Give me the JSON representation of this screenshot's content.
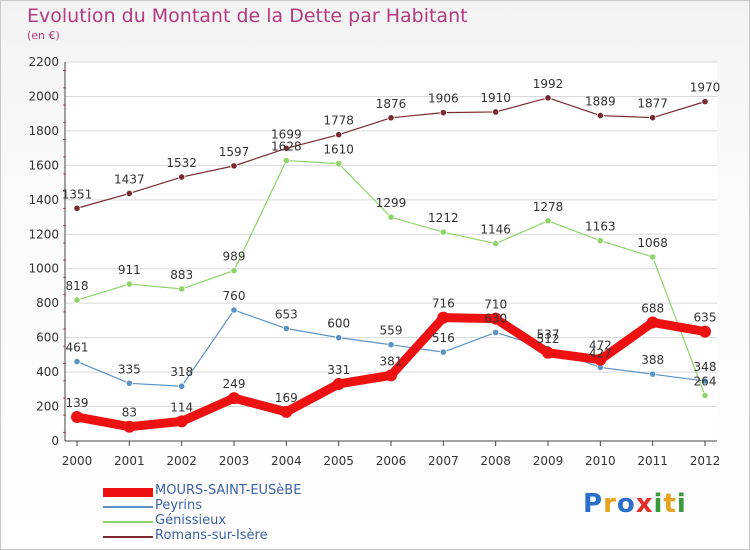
{
  "title": "Evolution du Montant de la Dette par Habitant",
  "subtitle": "(en €)",
  "logo": {
    "text": "Proxiti",
    "colors": [
      "#2a6fc9",
      "#e8a21c",
      "#2a6fc9",
      "#e0302a",
      "#3a9a3a",
      "#e8a21c",
      "#3a9a3a"
    ]
  },
  "chart_data": {
    "type": "line",
    "x": [
      "2000",
      "2001",
      "2002",
      "2003",
      "2004",
      "2005",
      "2006",
      "2007",
      "2008",
      "2009",
      "2010",
      "2011",
      "2012"
    ],
    "ylim": [
      0,
      2200
    ],
    "yticks": [
      "0",
      "200",
      "400",
      "600",
      "800",
      "1000",
      "1200",
      "1400",
      "1600",
      "1800",
      "2000",
      "2200"
    ],
    "grid": "horizontal",
    "legend_position": "bottom-left",
    "series": [
      {
        "name": "Romans-sur-Isère",
        "color": "#7a2a2e",
        "width": 1.2,
        "values": [
          1351,
          1437,
          1532,
          1597,
          1699,
          1778,
          1876,
          1906,
          1910,
          1992,
          1889,
          1877,
          1970
        ],
        "labels": [
          "1351",
          "1437",
          "1532",
          "1597",
          "1699",
          "1778",
          "1876",
          "1906",
          "1910",
          "1992",
          "1889",
          "1877",
          "1970"
        ]
      },
      {
        "name": "Génissieux",
        "color": "#8fd46a",
        "width": 1.2,
        "values": [
          818,
          911,
          883,
          989,
          1628,
          1610,
          1299,
          1212,
          1146,
          1278,
          1163,
          1068,
          264
        ],
        "labels": [
          "818",
          "911",
          "883",
          "989",
          "1628",
          "1610",
          "1299",
          "1212",
          "1146",
          "1278",
          "1163",
          "1068",
          "264"
        ]
      },
      {
        "name": "Peyrins",
        "color": "#5b93c7",
        "width": 1.2,
        "values": [
          461,
          335,
          318,
          760,
          653,
          600,
          559,
          516,
          630,
          537,
          427,
          388,
          348
        ],
        "labels": [
          "461",
          "335",
          "318",
          "760",
          "653",
          "600",
          "559",
          "516",
          "630",
          "537",
          "427",
          "388",
          "348"
        ]
      },
      {
        "name": "MOURS-SAINT-EUSèBE",
        "color": "#ee1111",
        "width": 9,
        "values": [
          139,
          83,
          114,
          249,
          169,
          331,
          381,
          716,
          710,
          512,
          472,
          688,
          635
        ],
        "labels": [
          "139",
          "83",
          "114",
          "249",
          "169",
          "331",
          "381",
          "716",
          "710",
          "512",
          "472",
          "688",
          "635"
        ]
      }
    ]
  }
}
